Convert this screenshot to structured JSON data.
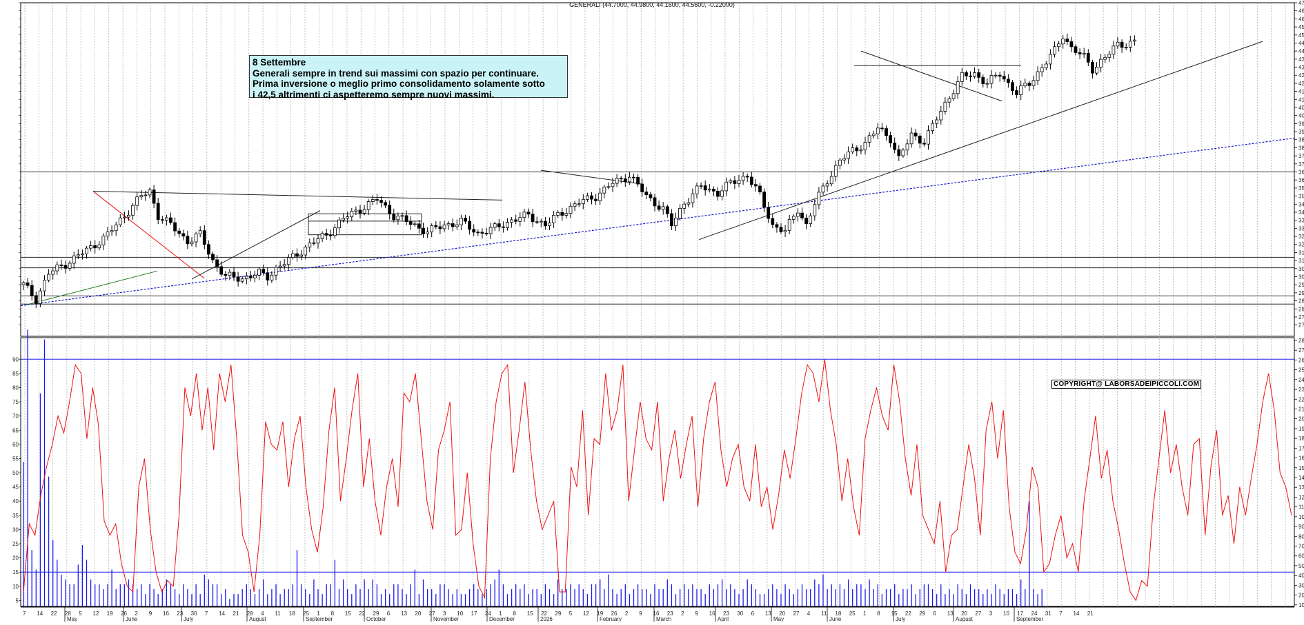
{
  "header": "GENERALI (44.7000, 44.9800, 44.1600, 44.5600, -0.22000)",
  "note": {
    "title": "8 Settembre",
    "lines": [
      "Generali sempre in trend sui massimi con spazio per continuare.",
      "Prima inversione o meglio primo consolidamento solamente sotto",
      "i 42,5 altrimenti ci aspetteremo sempre nuovi massimi."
    ]
  },
  "copyright": "COPYRIGHT@ LABORSADEIPICCOLI.COM",
  "colors": {
    "candle": "#000000",
    "volume": "#1a1aee",
    "oscillator": "#ee1111",
    "trend_dotted": "#1a1acc",
    "trend_red": "#ee1111",
    "trend_green": "#1c7a1c",
    "grid": "#9a9a9a"
  },
  "chart_data": [
    {
      "type": "candlestick",
      "title": "GENERALI (44.7000, 44.9800, 44.1600, 44.5600, -0.22000)",
      "ylim": [
        26.3,
        47.0
      ],
      "y_ticks": [
        "47.0",
        "46.5",
        "46.0",
        "45.5",
        "45.0",
        "44.5",
        "44.0",
        "43.5",
        "43.0",
        "42.5",
        "42.0",
        "41.5",
        "41.0",
        "40.5",
        "40.0",
        "39.5",
        "39.0",
        "38.5",
        "38.0",
        "37.5",
        "37.0",
        "36.5",
        "36.0",
        "35.5",
        "35.0",
        "34.5",
        "34.0",
        "33.5",
        "33.0",
        "32.5",
        "32.0",
        "31.5",
        "31.0",
        "30.5",
        "30.0",
        "29.5",
        "29.0",
        "28.5",
        "28.0",
        "27.5",
        "27.0"
      ],
      "last": {
        "open": 44.7,
        "high": 44.98,
        "low": 44.16,
        "close": 44.56,
        "change": -0.22
      },
      "price_path": [
        [
          0,
          29.5
        ],
        [
          3,
          28.6
        ],
        [
          6,
          30.2
        ],
        [
          10,
          30.8
        ],
        [
          16,
          31.8
        ],
        [
          20,
          32.6
        ],
        [
          24,
          33.8
        ],
        [
          28,
          35.0
        ],
        [
          30,
          35.3
        ],
        [
          32,
          33.8
        ],
        [
          35,
          33.2
        ],
        [
          39,
          32.2
        ],
        [
          42,
          32.6
        ],
        [
          45,
          31.0
        ],
        [
          48,
          30.0
        ],
        [
          52,
          29.9
        ],
        [
          56,
          30.2
        ],
        [
          58,
          30.0
        ],
        [
          60,
          30.5
        ],
        [
          64,
          31.2
        ],
        [
          68,
          32.0
        ],
        [
          72,
          32.6
        ],
        [
          76,
          33.6
        ],
        [
          80,
          34.2
        ],
        [
          84,
          34.8
        ],
        [
          88,
          33.8
        ],
        [
          92,
          33.3
        ],
        [
          96,
          32.8
        ],
        [
          100,
          33.2
        ],
        [
          104,
          33.4
        ],
        [
          108,
          32.7
        ],
        [
          112,
          33.0
        ],
        [
          116,
          33.5
        ],
        [
          120,
          33.8
        ],
        [
          124,
          33.2
        ],
        [
          128,
          34.0
        ],
        [
          132,
          34.6
        ],
        [
          136,
          35.0
        ],
        [
          140,
          35.8
        ],
        [
          144,
          36.3
        ],
        [
          148,
          35.0
        ],
        [
          152,
          34.2
        ],
        [
          154,
          33.2
        ],
        [
          157,
          34.6
        ],
        [
          161,
          35.6
        ],
        [
          165,
          35.2
        ],
        [
          168,
          35.8
        ],
        [
          172,
          36.3
        ],
        [
          175,
          35.0
        ],
        [
          178,
          33.2
        ],
        [
          181,
          32.8
        ],
        [
          184,
          34.2
        ],
        [
          186,
          33.2
        ],
        [
          188,
          34.5
        ],
        [
          191,
          36.0
        ],
        [
          194,
          37.2
        ],
        [
          197,
          37.8
        ],
        [
          200,
          38.3
        ],
        [
          203,
          39.2
        ],
        [
          206,
          38.6
        ],
        [
          208,
          37.3
        ],
        [
          211,
          38.8
        ],
        [
          214,
          38.4
        ],
        [
          217,
          39.8
        ],
        [
          220,
          41.2
        ],
        [
          223,
          42.4
        ],
        [
          226,
          42.6
        ],
        [
          229,
          42.0
        ],
        [
          232,
          42.6
        ],
        [
          236,
          41.4
        ],
        [
          239,
          42.0
        ],
        [
          242,
          43.0
        ],
        [
          245,
          44.0
        ],
        [
          247,
          45.0
        ],
        [
          249,
          44.2
        ],
        [
          252,
          43.6
        ],
        [
          254,
          42.9
        ],
        [
          257,
          43.6
        ],
        [
          260,
          44.4
        ],
        [
          264,
          44.56
        ]
      ],
      "oscillator": [
        8,
        32,
        28,
        42,
        52,
        60,
        70,
        64,
        75,
        88,
        85,
        62,
        80,
        67,
        33,
        28,
        32,
        18,
        10,
        8,
        45,
        55,
        30,
        15,
        8,
        12,
        10,
        35,
        80,
        70,
        85,
        65,
        80,
        58,
        85,
        75,
        88,
        62,
        28,
        22,
        8,
        28,
        68,
        60,
        58,
        68,
        45,
        62,
        70,
        45,
        30,
        22,
        38,
        65,
        80,
        40,
        55,
        72,
        85,
        45,
        62,
        40,
        28,
        45,
        55,
        38,
        78,
        75,
        85,
        62,
        40,
        30,
        58,
        65,
        75,
        28,
        30,
        50,
        25,
        10,
        6,
        55,
        75,
        85,
        88,
        50,
        65,
        82,
        58,
        40,
        30,
        35,
        40,
        8,
        8,
        52,
        45,
        72,
        35,
        62,
        60,
        85,
        65,
        72,
        88,
        40,
        58,
        75,
        62,
        58,
        75,
        40,
        55,
        65,
        48,
        60,
        70,
        38,
        62,
        75,
        82,
        58,
        45,
        55,
        60,
        45,
        40,
        60,
        38,
        45,
        30,
        42,
        58,
        48,
        62,
        78,
        88,
        85,
        75,
        90,
        72,
        60,
        40,
        55,
        38,
        28,
        62,
        72,
        80,
        70,
        65,
        88,
        75,
        55,
        42,
        60,
        35,
        30,
        25,
        40,
        15,
        28,
        30,
        45,
        60,
        48,
        28,
        65,
        75,
        55,
        72,
        38,
        22,
        18,
        30,
        52,
        45,
        15,
        18,
        28,
        35,
        20,
        25,
        15,
        40,
        55,
        70,
        48,
        58,
        40,
        30,
        18,
        8,
        5,
        12,
        10,
        38,
        55,
        72,
        50,
        60,
        45,
        35,
        60,
        62,
        28,
        52,
        65,
        35,
        42,
        25,
        45,
        35,
        48,
        60,
        75,
        85,
        72,
        50,
        45,
        35
      ],
      "volume": [
        30,
        57,
        12,
        8,
        44,
        55,
        27,
        14,
        10,
        7,
        6,
        5,
        5,
        9,
        13,
        10,
        6,
        5,
        5,
        4,
        5,
        8,
        4,
        5,
        5,
        6,
        5,
        4,
        5,
        3,
        5,
        4,
        3,
        4,
        6,
        5,
        4,
        3,
        5,
        4,
        3,
        5,
        3,
        7,
        6,
        5,
        5,
        3,
        4,
        2,
        3,
        3,
        4,
        5,
        4,
        3,
        4,
        6,
        3,
        4,
        5,
        3,
        4,
        4,
        5,
        12,
        5,
        4,
        3,
        6,
        4,
        3,
        5,
        5,
        10,
        4,
        6,
        4,
        3,
        5,
        4,
        6,
        4,
        6,
        5,
        3,
        4,
        3,
        5,
        5,
        4,
        3,
        5,
        8,
        3,
        6,
        4,
        4,
        3,
        5,
        5,
        4,
        3,
        4,
        3,
        3,
        4,
        5,
        4,
        3,
        4,
        5,
        6,
        8,
        5,
        3,
        4,
        5,
        4,
        5,
        3,
        4,
        4,
        3,
        5,
        4,
        3,
        6,
        4,
        4,
        5,
        4,
        5,
        4,
        3,
        5,
        5,
        6,
        4,
        7,
        4,
        3,
        4,
        5,
        3,
        4,
        5,
        4,
        4,
        3,
        5,
        4,
        4,
        6,
        5,
        3,
        4,
        5,
        4,
        5,
        4,
        4,
        3,
        5,
        4,
        5,
        6,
        4,
        5,
        4,
        3,
        4,
        6,
        5,
        4,
        3,
        3,
        4,
        5,
        4,
        3,
        5,
        4,
        3,
        4,
        5,
        4,
        4,
        6,
        5,
        7,
        4,
        5,
        4,
        5,
        4,
        6,
        4,
        5,
        5,
        4,
        6,
        4,
        5,
        3,
        4,
        4,
        5,
        3,
        4,
        4,
        5,
        3,
        4,
        5,
        5,
        4,
        3,
        5,
        3,
        4,
        3,
        5,
        4,
        3,
        5,
        4,
        4,
        3,
        4,
        3,
        5,
        4,
        3,
        4,
        4,
        3,
        6,
        4,
        22,
        4,
        3,
        4
      ],
      "volume_ticks": [
        "28000",
        "27000",
        "26000",
        "25000",
        "24000",
        "23000",
        "22000",
        "21000",
        "20000",
        "19000",
        "18000",
        "17000",
        "16000",
        "15000",
        "14000",
        "13000",
        "12000",
        "11000",
        "10000",
        "9000",
        "8000",
        "7000",
        "6000",
        "5000",
        "4000",
        "3000",
        "2000",
        "1000"
      ],
      "oscillator_ticks": [
        "90",
        "85",
        "80",
        "75",
        "70",
        "65",
        "60",
        "55",
        "50",
        "45",
        "40",
        "35",
        "30",
        "25",
        "20",
        "15",
        "10",
        "5"
      ],
      "oscillator_levels": [
        90,
        15
      ],
      "horizontal_levels": [
        36.5,
        31.2,
        30.55,
        28.8,
        28.3
      ],
      "x_day_labels": [
        "7",
        "14",
        "22",
        "28",
        "5",
        "12",
        "19",
        "26",
        "2",
        "9",
        "16",
        "23",
        "30",
        "7",
        "14",
        "21",
        "28",
        "4",
        "11",
        "18",
        "25",
        "1",
        "8",
        "15",
        "22",
        "29",
        "6",
        "13",
        "20",
        "27",
        "3",
        "10",
        "17",
        "24",
        "1",
        "8",
        "15",
        "22",
        "29",
        "5",
        "12",
        "19",
        "26",
        "2",
        "9",
        "16",
        "23",
        "2",
        "9",
        "16",
        "23",
        "30",
        "6",
        "13",
        "20",
        "27",
        "4",
        "11",
        "18",
        "25",
        "1",
        "8",
        "15",
        "22",
        "29",
        "6",
        "13",
        "20",
        "27",
        "3",
        "10",
        "17",
        "24",
        "31",
        "7",
        "14",
        "21"
      ],
      "x_month_labels": [
        "May",
        "June",
        "July",
        "August",
        "September",
        "October",
        "November",
        "December",
        "2026",
        "February",
        "March",
        "April",
        "May",
        "June",
        "July",
        "August",
        "September"
      ]
    }
  ]
}
